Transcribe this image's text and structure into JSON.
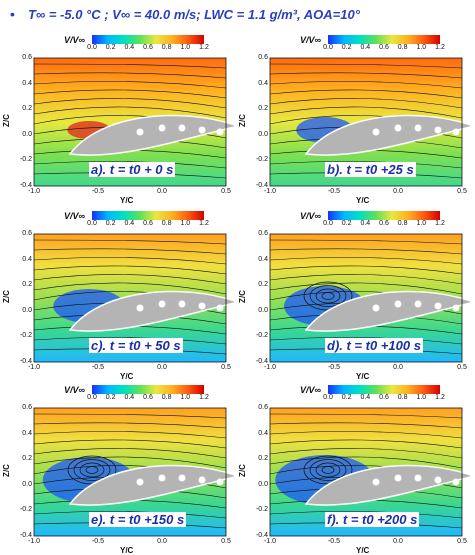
{
  "header": {
    "bullet": "•",
    "condition": "T∞ = -5.0 °C ; V∞ = 40.0 m/s; LWC = 1.1 g/m³, AOA=10°"
  },
  "legend": {
    "title": "V/V∞",
    "ticks": [
      "0.0",
      "0.2",
      "0.4",
      "0.6",
      "0.8",
      "1.0",
      "1.2"
    ]
  },
  "axes": {
    "ylabel": "Z/C",
    "xlabel": "Y/C",
    "y_ticks": [
      "0.6",
      "0.4",
      "0.2",
      "0.0",
      "-0.2",
      "-0.4"
    ],
    "x_ticks": [
      "-1.0",
      "-0.5",
      "0.0",
      "0.5"
    ]
  },
  "panels": [
    {
      "label": "a). t = t0 + 0 s"
    },
    {
      "label": "b). t = t0 +25 s"
    },
    {
      "label": "c). t = t0 + 50 s"
    },
    {
      "label": "d). t = t0 +100 s"
    },
    {
      "label": "e). t = t0 +150 s"
    },
    {
      "label": "f). t = t0 +200 s"
    }
  ],
  "colors": {
    "colormap": [
      "#1433ff",
      "#00b8ff",
      "#00e0c0",
      "#5fe05a",
      "#e8e840",
      "#ffb020",
      "#ff5a10",
      "#d40000"
    ],
    "label_text": "#1a2fa8",
    "airfoil": "#b4b4b4"
  }
}
